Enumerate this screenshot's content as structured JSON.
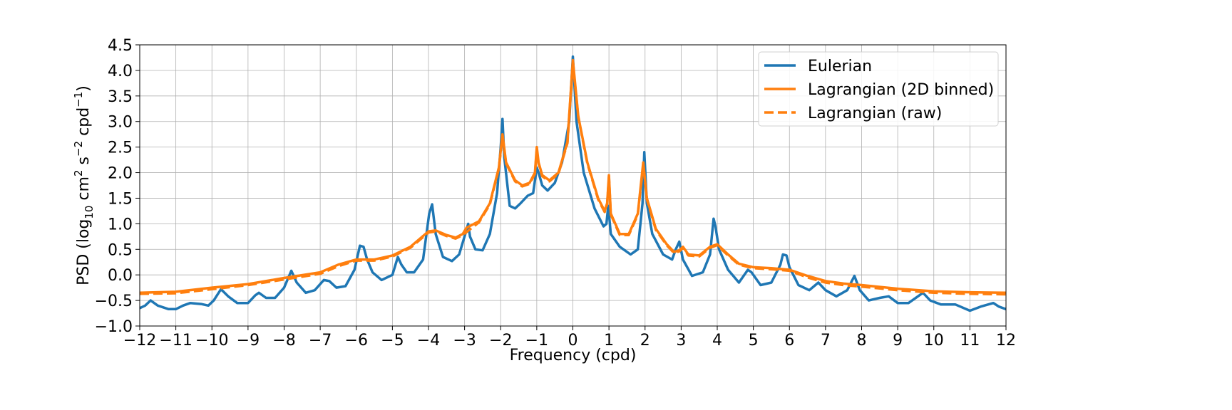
{
  "chart_data": {
    "type": "line",
    "title": "",
    "xlabel": "Frequency (cpd)",
    "ylabel_parts": {
      "a": "PSD (log",
      "sub": "10",
      "b": " cm",
      "sup1": "2",
      "c": " s",
      "sup2": "−2",
      "d": " cpd",
      "sup3": "−1",
      "e": ")"
    },
    "xlim": [
      -12,
      12
    ],
    "ylim": [
      -1.0,
      4.5
    ],
    "x_ticks": [
      -12,
      -11,
      -10,
      -9,
      -8,
      -7,
      -6,
      -5,
      -4,
      -3,
      -2,
      -1,
      0,
      1,
      2,
      3,
      4,
      5,
      6,
      7,
      8,
      9,
      10,
      11,
      12
    ],
    "x_tick_labels": [
      "−12",
      "−11",
      "−10",
      "−9",
      "−8",
      "−7",
      "−6",
      "−5",
      "−4",
      "−3",
      "−2",
      "−1",
      "0",
      "1",
      "2",
      "3",
      "4",
      "5",
      "6",
      "7",
      "8",
      "9",
      "10",
      "11",
      "12"
    ],
    "y_ticks": [
      -1.0,
      -0.5,
      0.0,
      0.5,
      1.0,
      1.5,
      2.0,
      2.5,
      3.0,
      3.5,
      4.0,
      4.5
    ],
    "y_tick_labels": [
      "−1.0",
      "−0.5",
      "0.0",
      "0.5",
      "1.0",
      "1.5",
      "2.0",
      "2.5",
      "3.0",
      "3.5",
      "4.0",
      "4.5"
    ],
    "grid": true,
    "legend_position": "top-right",
    "series": [
      {
        "name": "Eulerian",
        "color": "#1f77b4",
        "dash": "solid",
        "points": [
          [
            -12,
            -0.65
          ],
          [
            -11.85,
            -0.6
          ],
          [
            -11.7,
            -0.5
          ],
          [
            -11.5,
            -0.6
          ],
          [
            -11.2,
            -0.67
          ],
          [
            -11,
            -0.67
          ],
          [
            -10.8,
            -0.6
          ],
          [
            -10.6,
            -0.55
          ],
          [
            -10.3,
            -0.57
          ],
          [
            -10.1,
            -0.6
          ],
          [
            -9.95,
            -0.5
          ],
          [
            -9.75,
            -0.28
          ],
          [
            -9.55,
            -0.42
          ],
          [
            -9.3,
            -0.55
          ],
          [
            -9.0,
            -0.55
          ],
          [
            -8.8,
            -0.4
          ],
          [
            -8.7,
            -0.35
          ],
          [
            -8.5,
            -0.45
          ],
          [
            -8.25,
            -0.45
          ],
          [
            -8.0,
            -0.25
          ],
          [
            -7.8,
            0.08
          ],
          [
            -7.65,
            -0.15
          ],
          [
            -7.4,
            -0.35
          ],
          [
            -7.15,
            -0.3
          ],
          [
            -6.9,
            -0.1
          ],
          [
            -6.75,
            -0.12
          ],
          [
            -6.55,
            -0.25
          ],
          [
            -6.3,
            -0.22
          ],
          [
            -6.05,
            0.1
          ],
          [
            -5.9,
            0.57
          ],
          [
            -5.8,
            0.55
          ],
          [
            -5.7,
            0.3
          ],
          [
            -5.55,
            0.05
          ],
          [
            -5.3,
            -0.1
          ],
          [
            -5.0,
            0.0
          ],
          [
            -4.85,
            0.35
          ],
          [
            -4.75,
            0.2
          ],
          [
            -4.6,
            0.05
          ],
          [
            -4.4,
            0.05
          ],
          [
            -4.15,
            0.3
          ],
          [
            -3.98,
            1.2
          ],
          [
            -3.9,
            1.38
          ],
          [
            -3.8,
            0.8
          ],
          [
            -3.6,
            0.35
          ],
          [
            -3.35,
            0.27
          ],
          [
            -3.15,
            0.4
          ],
          [
            -2.98,
            0.8
          ],
          [
            -2.9,
            1.0
          ],
          [
            -2.85,
            0.75
          ],
          [
            -2.7,
            0.5
          ],
          [
            -2.5,
            0.48
          ],
          [
            -2.3,
            0.8
          ],
          [
            -2.1,
            1.6
          ],
          [
            -2.0,
            2.5
          ],
          [
            -1.95,
            3.05
          ],
          [
            -1.9,
            2.3
          ],
          [
            -1.75,
            1.35
          ],
          [
            -1.6,
            1.3
          ],
          [
            -1.45,
            1.4
          ],
          [
            -1.25,
            1.55
          ],
          [
            -1.1,
            1.6
          ],
          [
            -1.0,
            2.1
          ],
          [
            -0.95,
            2.0
          ],
          [
            -0.85,
            1.75
          ],
          [
            -0.7,
            1.65
          ],
          [
            -0.5,
            1.8
          ],
          [
            -0.3,
            2.2
          ],
          [
            -0.1,
            3.0
          ],
          [
            0,
            4.27
          ],
          [
            0.1,
            3.0
          ],
          [
            0.3,
            2.0
          ],
          [
            0.6,
            1.3
          ],
          [
            0.85,
            0.95
          ],
          [
            0.93,
            1.0
          ],
          [
            0.98,
            1.35
          ],
          [
            1.05,
            0.8
          ],
          [
            1.3,
            0.55
          ],
          [
            1.6,
            0.4
          ],
          [
            1.8,
            0.5
          ],
          [
            1.93,
            1.4
          ],
          [
            1.98,
            2.4
          ],
          [
            2.05,
            1.4
          ],
          [
            2.2,
            0.8
          ],
          [
            2.5,
            0.4
          ],
          [
            2.75,
            0.3
          ],
          [
            2.85,
            0.5
          ],
          [
            2.95,
            0.65
          ],
          [
            3.05,
            0.3
          ],
          [
            3.3,
            -0.02
          ],
          [
            3.6,
            0.05
          ],
          [
            3.8,
            0.4
          ],
          [
            3.9,
            1.1
          ],
          [
            3.95,
            0.95
          ],
          [
            4.05,
            0.5
          ],
          [
            4.3,
            0.1
          ],
          [
            4.6,
            -0.15
          ],
          [
            4.85,
            0.1
          ],
          [
            4.95,
            0.05
          ],
          [
            5.2,
            -0.2
          ],
          [
            5.5,
            -0.15
          ],
          [
            5.75,
            0.2
          ],
          [
            5.82,
            0.4
          ],
          [
            5.92,
            0.38
          ],
          [
            6.0,
            0.15
          ],
          [
            6.25,
            -0.2
          ],
          [
            6.55,
            -0.3
          ],
          [
            6.8,
            -0.15
          ],
          [
            7.0,
            -0.3
          ],
          [
            7.3,
            -0.42
          ],
          [
            7.6,
            -0.3
          ],
          [
            7.8,
            -0.02
          ],
          [
            7.95,
            -0.3
          ],
          [
            8.2,
            -0.5
          ],
          [
            8.5,
            -0.45
          ],
          [
            8.75,
            -0.42
          ],
          [
            9.0,
            -0.55
          ],
          [
            9.3,
            -0.55
          ],
          [
            9.7,
            -0.35
          ],
          [
            9.9,
            -0.5
          ],
          [
            10.2,
            -0.58
          ],
          [
            10.6,
            -0.58
          ],
          [
            11.0,
            -0.7
          ],
          [
            11.3,
            -0.62
          ],
          [
            11.65,
            -0.55
          ],
          [
            11.8,
            -0.62
          ],
          [
            12,
            -0.67
          ]
        ]
      },
      {
        "name": "Lagrangian (2D binned)",
        "color": "#ff7f0e",
        "dash": "solid",
        "points": [
          [
            -12,
            -0.35
          ],
          [
            -11,
            -0.33
          ],
          [
            -10,
            -0.25
          ],
          [
            -9,
            -0.18
          ],
          [
            -8,
            -0.06
          ],
          [
            -7,
            0.05
          ],
          [
            -6.5,
            0.2
          ],
          [
            -6,
            0.3
          ],
          [
            -5.5,
            0.3
          ],
          [
            -5,
            0.38
          ],
          [
            -4.5,
            0.55
          ],
          [
            -4.0,
            0.85
          ],
          [
            -3.8,
            0.87
          ],
          [
            -3.5,
            0.78
          ],
          [
            -3.25,
            0.73
          ],
          [
            -3.05,
            0.8
          ],
          [
            -2.95,
            0.92
          ],
          [
            -2.6,
            1.05
          ],
          [
            -2.3,
            1.4
          ],
          [
            -2.05,
            2.1
          ],
          [
            -1.95,
            2.75
          ],
          [
            -1.85,
            2.2
          ],
          [
            -1.6,
            1.85
          ],
          [
            -1.4,
            1.75
          ],
          [
            -1.2,
            1.8
          ],
          [
            -1.05,
            2.0
          ],
          [
            -1.0,
            2.5
          ],
          [
            -0.95,
            2.2
          ],
          [
            -0.85,
            1.95
          ],
          [
            -0.65,
            1.85
          ],
          [
            -0.4,
            2.0
          ],
          [
            -0.15,
            2.6
          ],
          [
            0,
            4.2
          ],
          [
            0.15,
            3.1
          ],
          [
            0.4,
            2.2
          ],
          [
            0.7,
            1.5
          ],
          [
            0.88,
            1.25
          ],
          [
            0.95,
            1.4
          ],
          [
            1.0,
            1.95
          ],
          [
            1.05,
            1.2
          ],
          [
            1.3,
            0.8
          ],
          [
            1.55,
            0.8
          ],
          [
            1.8,
            1.2
          ],
          [
            1.95,
            2.2
          ],
          [
            2.05,
            1.5
          ],
          [
            2.3,
            0.9
          ],
          [
            2.6,
            0.6
          ],
          [
            2.8,
            0.45
          ],
          [
            2.95,
            0.48
          ],
          [
            3.05,
            0.55
          ],
          [
            3.2,
            0.4
          ],
          [
            3.5,
            0.38
          ],
          [
            3.8,
            0.55
          ],
          [
            4.0,
            0.6
          ],
          [
            4.3,
            0.4
          ],
          [
            4.6,
            0.22
          ],
          [
            5.0,
            0.15
          ],
          [
            5.5,
            0.13
          ],
          [
            6.0,
            0.1
          ],
          [
            6.5,
            -0.02
          ],
          [
            7.0,
            -0.12
          ],
          [
            7.5,
            -0.17
          ],
          [
            8.0,
            -0.2
          ],
          [
            9.0,
            -0.27
          ],
          [
            10.0,
            -0.32
          ],
          [
            11.0,
            -0.34
          ],
          [
            12,
            -0.35
          ]
        ]
      },
      {
        "name": "Lagrangian (raw)",
        "color": "#ff7f0e",
        "dash": "dashed",
        "points": [
          [
            -12,
            -0.37
          ],
          [
            -11,
            -0.36
          ],
          [
            -10,
            -0.28
          ],
          [
            -9,
            -0.2
          ],
          [
            -8,
            -0.09
          ],
          [
            -7,
            0.02
          ],
          [
            -6.5,
            0.17
          ],
          [
            -6,
            0.28
          ],
          [
            -5.5,
            0.28
          ],
          [
            -5,
            0.36
          ],
          [
            -4.5,
            0.53
          ],
          [
            -4.0,
            0.83
          ],
          [
            -3.8,
            0.85
          ],
          [
            -3.5,
            0.76
          ],
          [
            -3.25,
            0.71
          ],
          [
            -3.05,
            0.78
          ],
          [
            -2.6,
            1.03
          ],
          [
            -2.3,
            1.38
          ],
          [
            -2.05,
            2.08
          ],
          [
            -1.95,
            2.7
          ],
          [
            -1.85,
            2.18
          ],
          [
            -1.6,
            1.83
          ],
          [
            -1.4,
            1.73
          ],
          [
            -1.2,
            1.78
          ],
          [
            -1.05,
            1.98
          ],
          [
            -1.0,
            2.45
          ],
          [
            -0.95,
            2.18
          ],
          [
            -0.85,
            1.93
          ],
          [
            -0.65,
            1.83
          ],
          [
            -0.4,
            1.98
          ],
          [
            -0.15,
            2.58
          ],
          [
            0,
            4.15
          ],
          [
            0.15,
            3.08
          ],
          [
            0.4,
            2.18
          ],
          [
            0.7,
            1.48
          ],
          [
            0.88,
            1.23
          ],
          [
            0.95,
            1.38
          ],
          [
            1.0,
            1.92
          ],
          [
            1.05,
            1.18
          ],
          [
            1.3,
            0.78
          ],
          [
            1.55,
            0.78
          ],
          [
            1.8,
            1.18
          ],
          [
            1.95,
            2.15
          ],
          [
            2.05,
            1.48
          ],
          [
            2.3,
            0.88
          ],
          [
            2.6,
            0.58
          ],
          [
            2.8,
            0.43
          ],
          [
            2.95,
            0.46
          ],
          [
            3.05,
            0.53
          ],
          [
            3.2,
            0.38
          ],
          [
            3.5,
            0.36
          ],
          [
            3.8,
            0.53
          ],
          [
            4.0,
            0.58
          ],
          [
            4.3,
            0.38
          ],
          [
            4.6,
            0.2
          ],
          [
            5.0,
            0.13
          ],
          [
            5.5,
            0.11
          ],
          [
            6.0,
            0.08
          ],
          [
            6.5,
            -0.05
          ],
          [
            7.0,
            -0.15
          ],
          [
            7.5,
            -0.2
          ],
          [
            8.0,
            -0.23
          ],
          [
            9.0,
            -0.3
          ],
          [
            10.0,
            -0.35
          ],
          [
            11.0,
            -0.37
          ],
          [
            12,
            -0.38
          ]
        ]
      }
    ]
  }
}
